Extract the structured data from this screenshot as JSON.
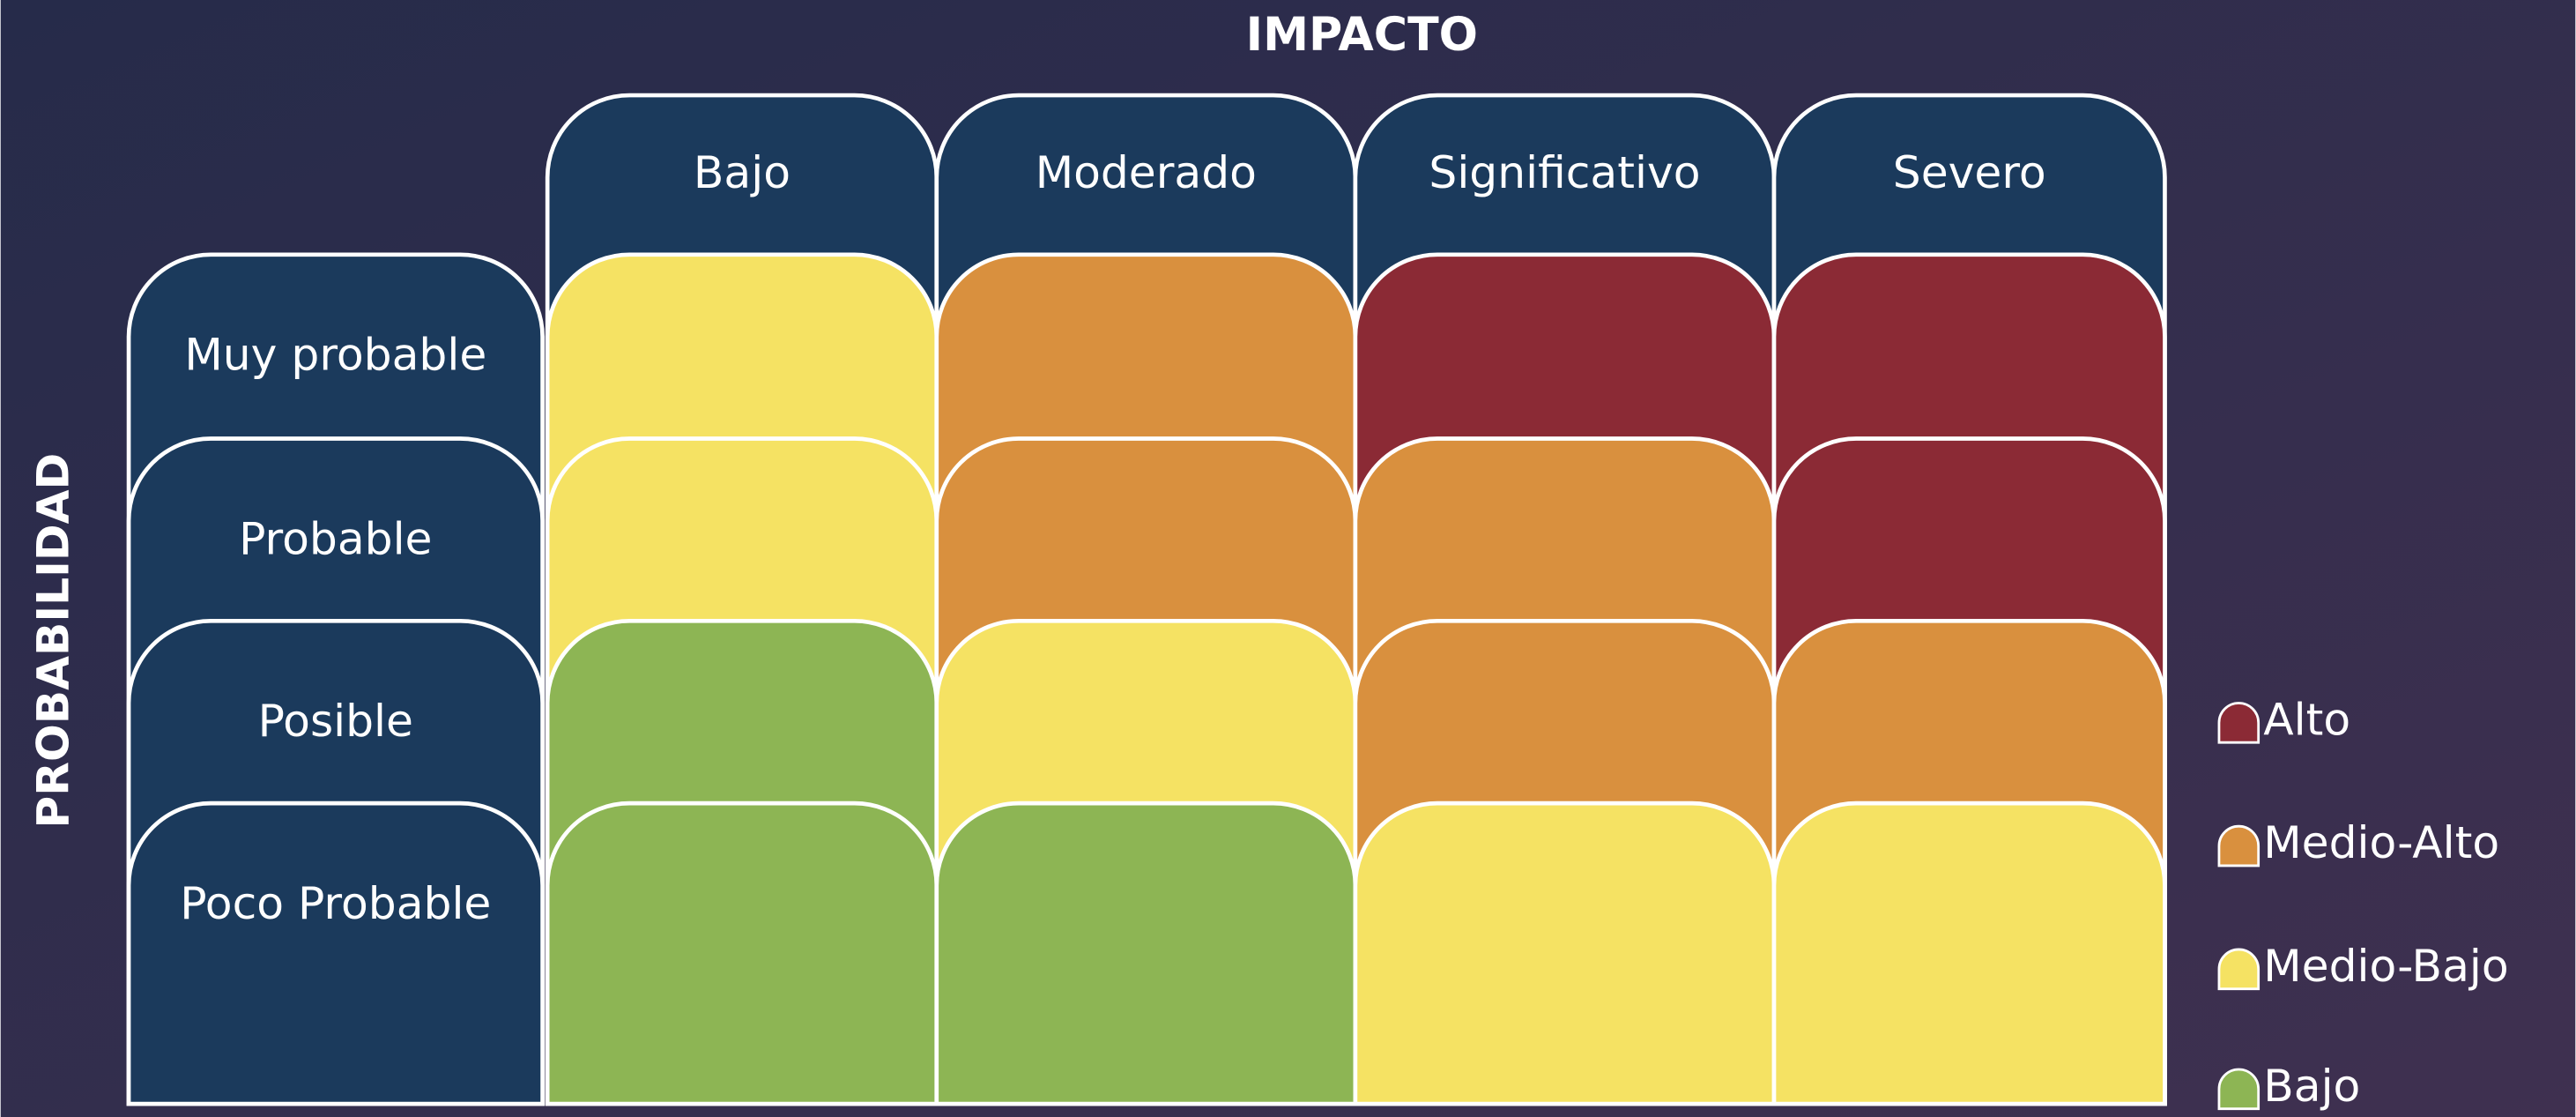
{
  "title": "IMPACTO",
  "row_axis": "PROBABILIDAD",
  "columns": [
    "Bajo",
    "Moderado",
    "Significativo",
    "Severo"
  ],
  "rows": [
    "Muy probable",
    "Probable",
    "Posible",
    "Poco Probable"
  ],
  "cells": [
    [
      "#f5e263",
      "#d9903e",
      "#8b2a35",
      "#8b2a35"
    ],
    [
      "#f5e263",
      "#d9903e",
      "#d9903e",
      "#8b2a35"
    ],
    [
      "#8db554",
      "#f5e263",
      "#d9903e",
      "#d9903e"
    ],
    [
      "#8db554",
      "#8db554",
      "#f5e263",
      "#f5e263"
    ]
  ],
  "header_color": "#1b3a5c",
  "legend": [
    {
      "label": "Alto",
      "color": "#8b2a35"
    },
    {
      "label": "Medio-Alto",
      "color": "#d9903e"
    },
    {
      "label": "Medio-Bajo",
      "color": "#f5e263"
    },
    {
      "label": "Bajo",
      "color": "#8db554"
    }
  ]
}
